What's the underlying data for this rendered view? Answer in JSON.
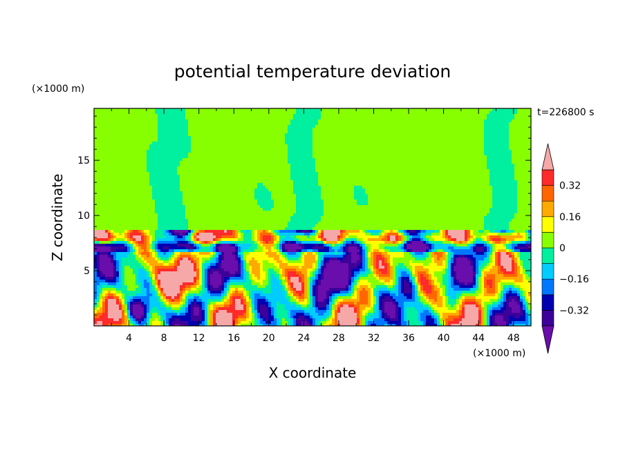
{
  "chart_data": {
    "type": "heatmap",
    "title": "potential temperature deviation",
    "time_label": "t=226800 s",
    "xlabel": "X coordinate",
    "ylabel": "Z coordinate",
    "x_units": "(×1000 m)",
    "y_units": "(×1000 m)",
    "xlim": [
      0,
      50
    ],
    "ylim": [
      0,
      19.7
    ],
    "x_ticks": [
      "4",
      "8",
      "12",
      "16",
      "20",
      "24",
      "28",
      "32",
      "36",
      "40",
      "44",
      "48"
    ],
    "x_tick_values": [
      4,
      8,
      12,
      16,
      20,
      24,
      28,
      32,
      36,
      40,
      44,
      48
    ],
    "y_ticks": [
      "5",
      "10",
      "15"
    ],
    "y_tick_values": [
      5,
      10,
      15
    ],
    "colorbar": {
      "levels": [
        -0.4,
        -0.32,
        -0.24,
        -0.16,
        -0.08,
        0,
        0.08,
        0.16,
        0.24,
        0.32,
        0.4
      ],
      "labels": [
        "0.32",
        "0.16",
        "0",
        "−0.16",
        "−0.32"
      ],
      "label_values": [
        0.32,
        0.16,
        0,
        -0.16,
        -0.32
      ],
      "colors": [
        "#6a0dad",
        "#3d0099",
        "#0000b0",
        "#0077ff",
        "#00ccff",
        "#00f0a0",
        "#88ff00",
        "#ffff00",
        "#ffaa00",
        "#ff6600",
        "#ff2a2a",
        "#f6a8a8"
      ]
    }
  }
}
